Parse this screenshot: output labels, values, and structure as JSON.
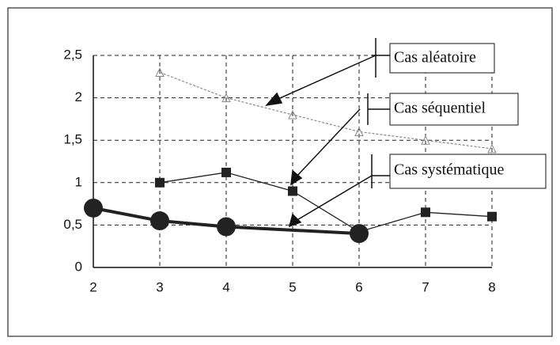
{
  "chart_data": {
    "type": "line",
    "xlim": [
      2,
      8
    ],
    "xticks": [
      2,
      3,
      4,
      5,
      6,
      7,
      8
    ],
    "ylim": [
      0,
      2.5
    ],
    "yticks": [
      0,
      {
        "value": 0.5,
        "label": "0,5"
      },
      1,
      {
        "value": 1.5,
        "label": "1,5"
      },
      2,
      {
        "value": 2.5,
        "label": "2,5"
      }
    ],
    "grid": true,
    "series": [
      {
        "name": "Cas aléatoire",
        "color": "#888888",
        "x": [
          3,
          4,
          5,
          6,
          7,
          8
        ],
        "values": [
          2.3,
          2.0,
          1.8,
          1.6,
          1.5,
          1.4
        ]
      },
      {
        "name": "Cas séquentiel",
        "color": "#222222",
        "x": [
          3,
          4,
          5,
          6,
          7,
          8
        ],
        "values": [
          1.0,
          1.12,
          0.9,
          0.42,
          0.65,
          0.6
        ]
      },
      {
        "name": "Cas systématique",
        "color": "#222222",
        "x": [
          2,
          3,
          4,
          6
        ],
        "values": [
          0.7,
          0.55,
          0.48,
          0.4
        ]
      }
    ]
  }
}
